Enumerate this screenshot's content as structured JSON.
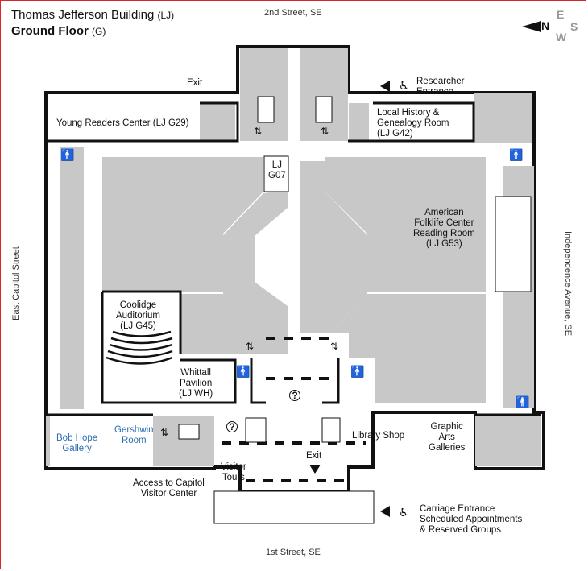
{
  "map": {
    "building": "Thomas Jefferson Building",
    "building_code": "(LJ)",
    "floor": "Ground Floor",
    "floor_code": "(G)"
  },
  "compass": {
    "n": "N",
    "e": "E",
    "w": "W",
    "s": "S"
  },
  "streets": {
    "north": "2nd Street, SE",
    "south": "1st Street, SE",
    "west": "East Capitol Street",
    "east": "Independence Avenue, SE"
  },
  "rooms": {
    "young_readers": "Young Readers Center (LJ G29)",
    "local_history_1": "Local History &",
    "local_history_2": "Genealogy Room",
    "local_history_3": "(LJ G42)",
    "lj_g07_1": "LJ",
    "lj_g07_2": "G07",
    "folklife_1": "American",
    "folklife_2": "Folklife Center",
    "folklife_3": "Reading Room",
    "folklife_4": "(LJ G53)",
    "coolidge_1": "Coolidge",
    "coolidge_2": "Auditorium",
    "coolidge_3": "(LJ G45)",
    "whittall_1": "Whittall",
    "whittall_2": "Pavilion",
    "whittall_3": "(LJ WH)",
    "bob_hope_1": "Bob Hope",
    "bob_hope_2": "Gallery",
    "gershwin_1": "Gershwin",
    "gershwin_2": "Room",
    "library_shop": "Library Shop",
    "graphic_1": "Graphic",
    "graphic_2": "Arts",
    "graphic_3": "Galleries",
    "visitor_1": "Visitor",
    "visitor_2": "Tours",
    "cvc_1": "Access to Capitol",
    "cvc_2": "Visitor Center"
  },
  "entrances": {
    "exit_north": "Exit",
    "exit_south": "Exit",
    "researcher_1": "Researcher",
    "researcher_2": "Entrance",
    "carriage_1": "Carriage Entrance",
    "carriage_2": "Scheduled Appointments",
    "carriage_3": "& Reserved Groups"
  },
  "icons": {
    "restroom": "🚹",
    "elevator": "⇅",
    "wifi": "wifi-icon",
    "info": "?",
    "coat": "coat-check-icon",
    "accessible": "♿"
  },
  "colors": {
    "wall": "#111111",
    "room_fill": "#c8c8c8",
    "border": "#d9242b",
    "link": "#2a6db5"
  }
}
